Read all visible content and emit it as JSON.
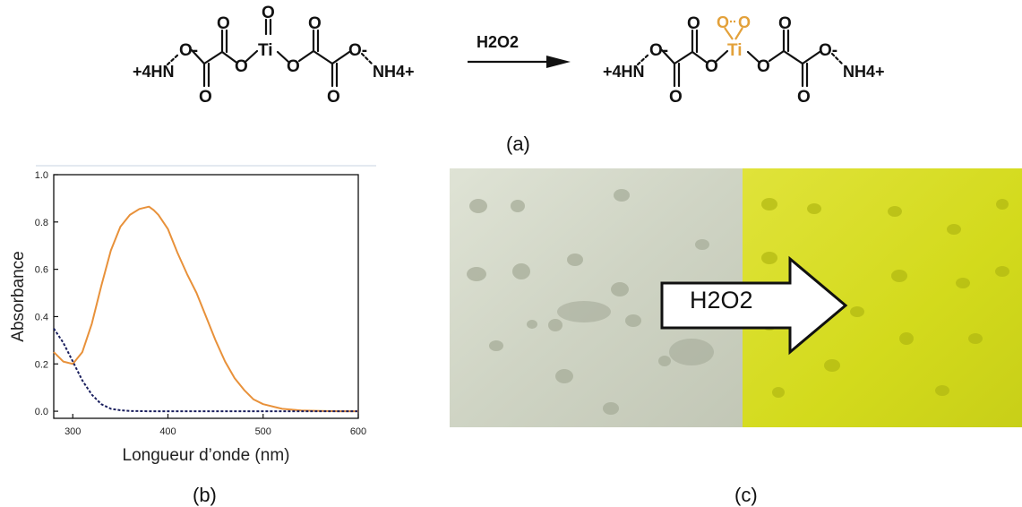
{
  "panel_labels": {
    "a": "(a)",
    "b": "(b)",
    "c": "(c)"
  },
  "reaction": {
    "reagent": "H2O2",
    "ammonium_left": "+4HN",
    "ammonium_right": "NH4+",
    "oxide_o": "O-",
    "carbonyl_o": "O",
    "ester_o": "O",
    "titanium": "Ti",
    "peroxo_o": "O",
    "colors": {
      "peroxo": "#e3a13a",
      "ink": "#111111"
    }
  },
  "arrow_label": "H2O2",
  "chart_data": {
    "type": "line",
    "xlabel": "Longueur d’onde (nm)",
    "ylabel": "Absorbance",
    "xlim": [
      280,
      600
    ],
    "ylim": [
      -0.03,
      1.0
    ],
    "xticks": [
      300,
      400,
      500,
      600
    ],
    "yticks": [
      0.0,
      0.2,
      0.4,
      0.6,
      0.8,
      1.0
    ],
    "ytick_labels": [
      "0.0",
      "0.2",
      "0.4",
      "0.6",
      "0.8",
      "1.0"
    ],
    "series": [
      {
        "color": "#e8913a",
        "style": "solid",
        "x": [
          280,
          290,
          300,
          310,
          320,
          330,
          340,
          350,
          360,
          370,
          380,
          385,
          390,
          400,
          410,
          420,
          430,
          440,
          450,
          460,
          470,
          480,
          490,
          500,
          520,
          540,
          560,
          580,
          600
        ],
        "y": [
          0.25,
          0.21,
          0.2,
          0.25,
          0.37,
          0.53,
          0.68,
          0.78,
          0.83,
          0.855,
          0.865,
          0.85,
          0.83,
          0.77,
          0.67,
          0.58,
          0.5,
          0.4,
          0.3,
          0.21,
          0.14,
          0.09,
          0.05,
          0.03,
          0.01,
          0.003,
          0.001,
          0.0,
          0.0
        ]
      },
      {
        "color": "#1a1f5e",
        "style": "dashed",
        "x": [
          280,
          290,
          300,
          310,
          320,
          330,
          340,
          350,
          360,
          380,
          400,
          450,
          500,
          550,
          600
        ],
        "y": [
          0.35,
          0.29,
          0.21,
          0.13,
          0.07,
          0.03,
          0.01,
          0.004,
          0.001,
          0.0,
          0.0,
          0.0,
          0.0,
          0.0,
          0.0
        ]
      }
    ]
  },
  "photo": {
    "colors": {
      "before": "#d7dbcc",
      "after": "#d6dc1a",
      "arrow_fill": "#ffffff",
      "arrow_stroke": "#111111"
    }
  }
}
